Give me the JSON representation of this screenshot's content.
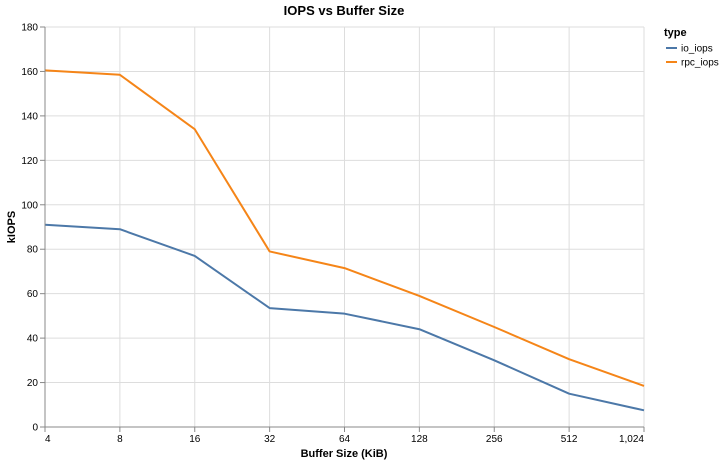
{
  "chart_data": {
    "type": "line",
    "title": "IOPS vs Buffer Size",
    "xlabel": "Buffer Size (KiB)",
    "ylabel": "kIOPS",
    "x_scale": "log2",
    "x": [
      4,
      8,
      16,
      32,
      64,
      128,
      256,
      512,
      1024
    ],
    "x_tick_labels": [
      "4",
      "8",
      "16",
      "32",
      "64",
      "128",
      "256",
      "512",
      "1,024"
    ],
    "xlim": [
      4,
      1024
    ],
    "ylim": [
      0,
      180
    ],
    "y_ticks": [
      0,
      20,
      40,
      60,
      80,
      100,
      120,
      140,
      160,
      180
    ],
    "grid": true,
    "legend": {
      "title": "type",
      "placement": "top-right"
    },
    "series": [
      {
        "name": "io_iops",
        "color": "#4c78a8",
        "values": [
          91,
          89,
          77,
          53.5,
          51,
          44,
          30,
          15,
          7.5
        ]
      },
      {
        "name": "rpc_iops",
        "color": "#f58518",
        "values": [
          160.5,
          158.5,
          134,
          79,
          71.5,
          59,
          45,
          30.5,
          18.5
        ]
      }
    ]
  }
}
